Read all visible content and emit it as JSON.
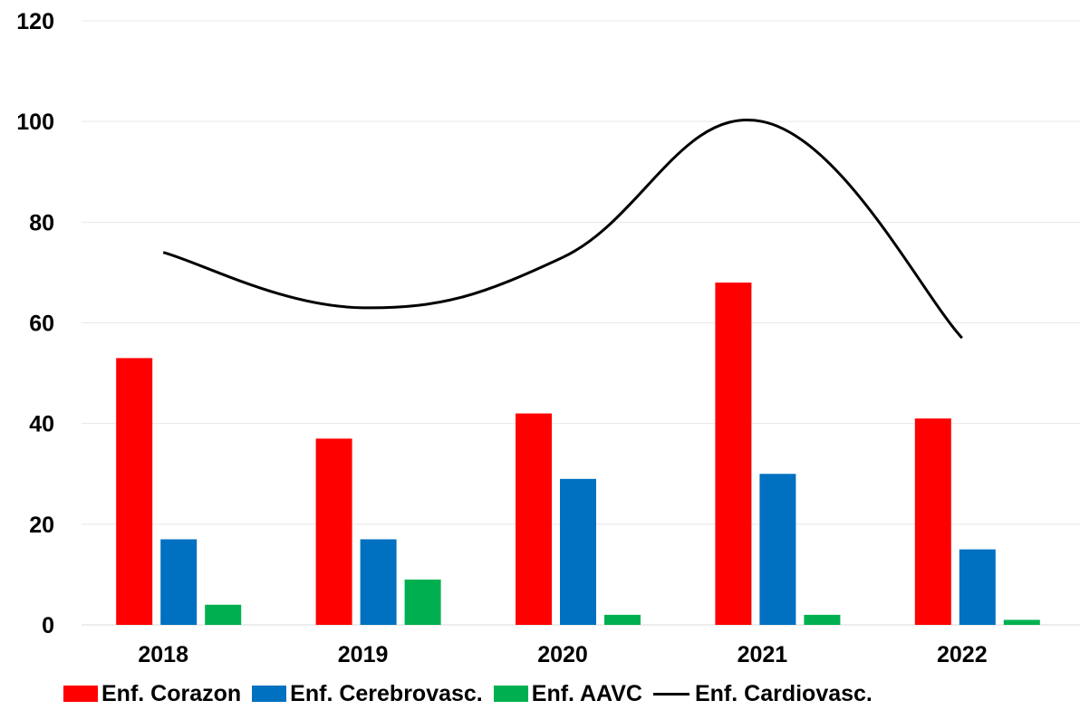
{
  "chart_data": {
    "type": "bar",
    "categories": [
      "2018",
      "2019",
      "2020",
      "2021",
      "2022"
    ],
    "series": [
      {
        "name": "Enf. Corazon",
        "type": "bar",
        "color": "#ff0000",
        "values": [
          53,
          37,
          42,
          68,
          41
        ]
      },
      {
        "name": "Enf. Cerebrovasc.",
        "type": "bar",
        "color": "#0070c0",
        "values": [
          17,
          17,
          29,
          30,
          15
        ]
      },
      {
        "name": "Enf. AAVC",
        "type": "bar",
        "color": "#00b050",
        "values": [
          4,
          9,
          2,
          2,
          1
        ]
      },
      {
        "name": "Enf. Cardiovasc.",
        "type": "line",
        "color": "#000000",
        "values": [
          74,
          63,
          73,
          100,
          57
        ]
      }
    ],
    "yticks": [
      "0",
      "20",
      "40",
      "60",
      "80",
      "100",
      "120"
    ],
    "ylim": [
      0,
      120
    ],
    "grid": true,
    "legend_position": "bottom"
  }
}
